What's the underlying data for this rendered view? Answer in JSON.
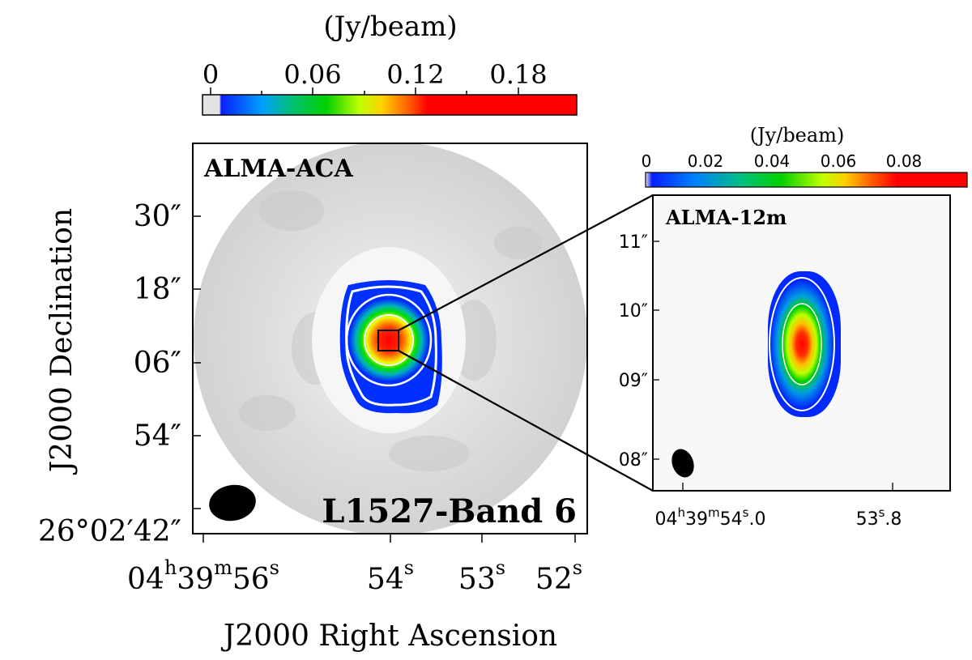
{
  "colorbar_unit": "(Jy/beam)",
  "inset_colorbar_unit": "(Jy/beam)",
  "colorbar_ticks": [
    "0",
    "0.06",
    "0.12",
    "0.18"
  ],
  "inset_colorbar_ticks": [
    "0",
    "0.02",
    "0.04",
    "0.06",
    "0.08"
  ],
  "main_panel": {
    "label": "ALMA-ACA",
    "title": "L1527-Band 6",
    "dec_ticks": [
      "30″",
      "18″",
      "06″",
      "54″",
      "26°02′42″"
    ],
    "ra_ticks": [
      {
        "base": "04",
        "h": "h",
        "mid": "39",
        "m": "m",
        "sec": "56",
        "s": "s"
      },
      {
        "base": "54",
        "s": "s"
      },
      {
        "base": "53",
        "s": "s"
      },
      {
        "base": "52",
        "s": "s"
      }
    ],
    "xlabel": "J2000 Right Ascension",
    "ylabel": "J2000 Declination"
  },
  "inset_panel": {
    "label": "ALMA-12m",
    "dec_ticks": [
      "11″",
      "10″",
      "09″",
      "08″"
    ],
    "ra_ticks": [
      {
        "text": "04h39m54s.0"
      },
      {
        "text": "53s.8"
      }
    ]
  },
  "colors": {
    "colormap": [
      "#e6e6e6",
      "#0000ff",
      "#00c000",
      "#ffff00",
      "#ff0000"
    ],
    "contour": "#ffffff",
    "background_map": "#d4d4d4",
    "beam": "#000000"
  }
}
